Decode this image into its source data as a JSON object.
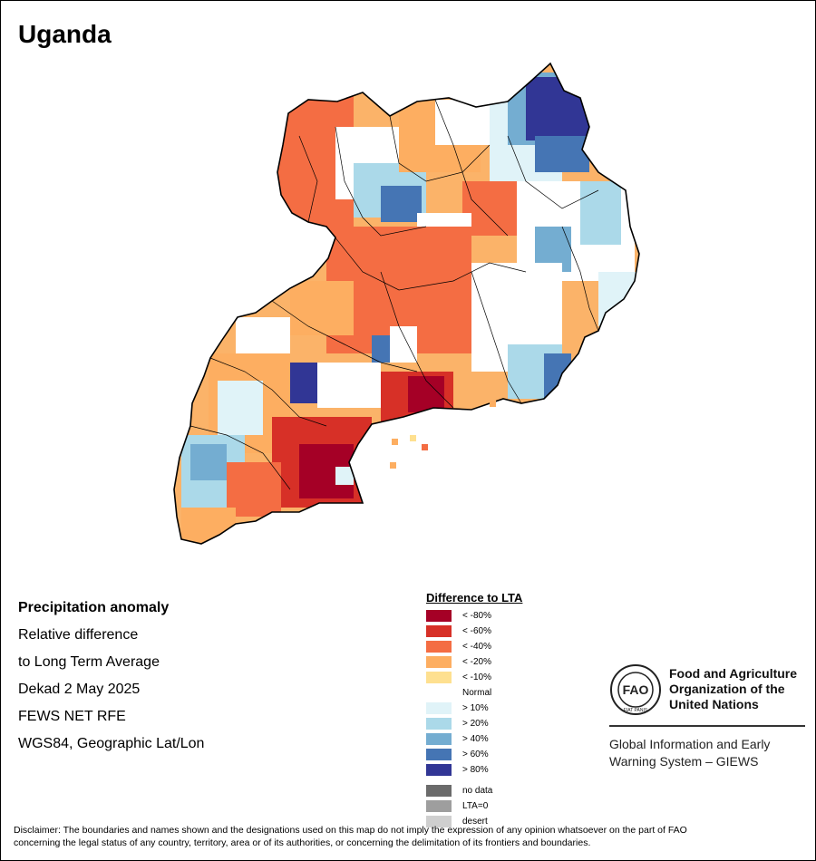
{
  "title": "Uganda",
  "info": {
    "heading": "Precipitation anomaly",
    "line1": "Relative difference",
    "line2": "to Long Term Average",
    "period": "Dekad 2 May 2025",
    "source": "FEWS NET RFE",
    "projection": "WGS84, Geographic Lat/Lon"
  },
  "legend": {
    "title": "Difference to LTA",
    "classes": [
      {
        "label": "< -80%",
        "color": "#a50026"
      },
      {
        "label": "< -60%",
        "color": "#d73027"
      },
      {
        "label": "< -40%",
        "color": "#f46d43"
      },
      {
        "label": "< -20%",
        "color": "#fdae61"
      },
      {
        "label": "< -10%",
        "color": "#fee090"
      },
      {
        "label": "Normal",
        "color": "#ffffff"
      },
      {
        "label": "> 10%",
        "color": "#e0f3f8"
      },
      {
        "label": "> 20%",
        "color": "#abd9e9"
      },
      {
        "label": "> 40%",
        "color": "#74add1"
      },
      {
        "label": "> 60%",
        "color": "#4575b4"
      },
      {
        "label": "> 80%",
        "color": "#313695"
      }
    ],
    "extra": [
      {
        "label": "no data",
        "color": "#6b6b6b"
      },
      {
        "label": "LTA=0",
        "color": "#9e9e9e"
      },
      {
        "label": "desert",
        "color": "#cfcfcf"
      }
    ]
  },
  "fao": {
    "org_line1": "Food and Agriculture",
    "org_line2": "Organization of the",
    "org_line3": "United Nations",
    "giews_line1": "Global Information and Early",
    "giews_line2": "Warning System – GIEWS",
    "logo_text": "FIAT PANIS"
  },
  "disclaimer_line1": "Disclaimer: The boundaries and names shown and the designations used on this map do not imply the expression of any opinion whatsoever on the part of FAO",
  "disclaimer_line2": "concerning the legal status of any country, territory, area or of its authorities, or concerning the delimitation of its frontiers and boundaries."
}
